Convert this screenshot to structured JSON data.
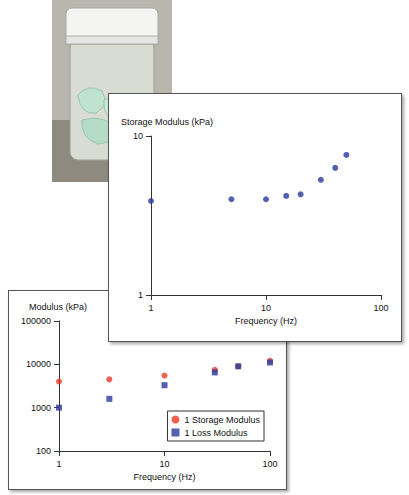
{
  "chart_data": [
    {
      "type": "scatter",
      "y_label": "Storage Modulus (kPa)",
      "x_label": "Frequency (Hz)",
      "x": [
        1,
        5,
        10,
        15,
        20,
        30,
        40,
        50
      ],
      "values": [
        3.9,
        4.0,
        4.0,
        4.2,
        4.3,
        5.3,
        6.3,
        7.6
      ],
      "color": "#2b3a9c",
      "marker": "circle",
      "log": true,
      "grid": false,
      "xlim": [
        1,
        100
      ],
      "ylim": [
        1,
        10
      ],
      "xticks": [
        1,
        10,
        100
      ],
      "yticks": [
        1,
        10
      ]
    },
    {
      "type": "scatter",
      "y_label": "Modulus (kPa)",
      "x_label": "Frequency (Hz)",
      "x": [
        1,
        3,
        10,
        30,
        50,
        100
      ],
      "series": [
        {
          "name": "1 Storage Modulus",
          "color": "#e8392b",
          "marker": "circle",
          "values": [
            4000,
            4500,
            5500,
            7500,
            9000,
            12000
          ]
        },
        {
          "name": "1 Loss Modulus",
          "color": "#2b3a9c",
          "marker": "square",
          "values": [
            1000,
            1600,
            3300,
            6500,
            9000,
            11000
          ]
        }
      ],
      "log": true,
      "grid": false,
      "legend": "lower right",
      "xlim": [
        1,
        100
      ],
      "ylim": [
        100,
        100000
      ],
      "xticks": [
        1,
        10,
        100
      ],
      "yticks": [
        100,
        1000,
        10000,
        100000
      ]
    }
  ]
}
